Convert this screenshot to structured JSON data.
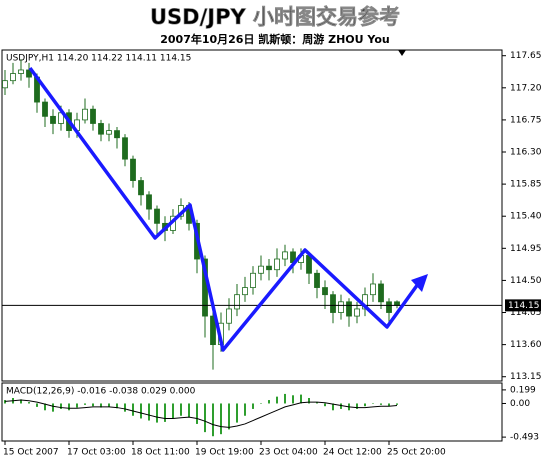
{
  "chart_data": {
    "type": "candlestick",
    "title": "USD/JPY 小时图交易参考",
    "subtitle": "2007年10月26日 凯斯顿：周游 ZHOU You",
    "info_label": "USDJPY,H1  114.20 114.22 114.11 114.15",
    "categories": [
      "15 Oct 2007",
      null,
      null,
      null,
      null,
      null,
      null,
      null,
      "17 Oct 03:00",
      null,
      null,
      null,
      null,
      null,
      null,
      null,
      "18 Oct 11:00",
      null,
      null,
      null,
      null,
      null,
      null,
      null,
      "19 Oct 19:00",
      null,
      null,
      null,
      null,
      null,
      null,
      null,
      "23 Oct 04:00",
      null,
      null,
      null,
      null,
      null,
      null,
      null,
      "24 Oct 12:00",
      null,
      null,
      null,
      null,
      null,
      null,
      null,
      "25 Oct 20:00",
      null
    ],
    "open": [
      117.2,
      117.3,
      117.4,
      117.45,
      117.35,
      117.0,
      116.8,
      116.7,
      116.85,
      116.6,
      116.75,
      116.9,
      116.7,
      116.55,
      116.6,
      116.5,
      116.2,
      115.9,
      115.7,
      115.5,
      115.3,
      115.2,
      115.4,
      115.55,
      115.3,
      114.8,
      114.0,
      113.6,
      113.9,
      114.1,
      114.3,
      114.4,
      114.6,
      114.7,
      114.65,
      114.8,
      114.9,
      114.75,
      114.85,
      114.6,
      114.4,
      114.3,
      114.05,
      114.2,
      114.0,
      114.1,
      114.3,
      114.45,
      114.2,
      114.2
    ],
    "high": [
      117.45,
      117.55,
      117.6,
      117.55,
      117.4,
      117.05,
      116.9,
      116.95,
      116.9,
      116.85,
      117.05,
      116.95,
      116.75,
      116.7,
      116.65,
      116.55,
      116.25,
      115.95,
      115.75,
      115.55,
      115.4,
      115.5,
      115.65,
      115.6,
      115.35,
      114.85,
      114.1,
      114.05,
      114.25,
      114.45,
      114.55,
      114.7,
      114.85,
      114.8,
      114.95,
      115.0,
      114.95,
      114.95,
      114.9,
      114.65,
      114.5,
      114.35,
      114.3,
      114.25,
      114.2,
      114.4,
      114.6,
      114.5,
      114.25,
      114.22
    ],
    "low": [
      117.1,
      117.25,
      117.3,
      117.2,
      116.85,
      116.65,
      116.55,
      116.6,
      116.5,
      116.5,
      116.7,
      116.6,
      116.45,
      116.45,
      116.35,
      116.1,
      115.8,
      115.55,
      115.35,
      115.15,
      115.05,
      115.15,
      115.35,
      115.2,
      114.6,
      113.7,
      113.25,
      113.5,
      113.8,
      114.0,
      114.2,
      114.3,
      114.5,
      114.5,
      114.55,
      114.7,
      114.6,
      114.65,
      114.45,
      114.25,
      114.1,
      113.9,
      113.95,
      113.85,
      113.9,
      114.0,
      114.2,
      114.1,
      113.9,
      114.11
    ],
    "close": [
      117.3,
      117.4,
      117.45,
      117.35,
      117.0,
      116.8,
      116.7,
      116.85,
      116.6,
      116.75,
      116.9,
      116.7,
      116.55,
      116.6,
      116.5,
      116.2,
      115.9,
      115.7,
      115.5,
      115.3,
      115.2,
      115.4,
      115.55,
      115.3,
      114.8,
      114.0,
      113.6,
      113.9,
      114.1,
      114.3,
      114.4,
      114.6,
      114.7,
      114.65,
      114.8,
      114.9,
      114.75,
      114.85,
      114.6,
      114.4,
      114.3,
      114.05,
      114.2,
      114.0,
      114.1,
      114.3,
      114.45,
      114.2,
      114.05,
      114.15
    ],
    "up_color": "#ffffff",
    "down_color": "#1e6b1e",
    "ylim": [
      113.09,
      117.73
    ],
    "yticks": [
      117.65,
      {
        "value": 117.2,
        "label": "117.20"
      },
      116.75,
      {
        "value": 116.3,
        "label": "116.30"
      },
      115.85,
      {
        "value": 115.4,
        "label": "115.40"
      },
      114.95,
      {
        "value": 114.5,
        "label": "114.50"
      },
      114.05,
      {
        "value": 113.6,
        "label": "113.60"
      },
      113.15
    ],
    "last_price": 114.15,
    "grid": false,
    "macd": {
      "label": "MACD(12,26,9) -0.016 -0.038 0.029 0.000",
      "ylim": [
        -0.55,
        0.3
      ],
      "yticks": [
        0.199,
        {
          "value": 0,
          "label": "0.00"
        },
        -0.493
      ],
      "histogram": {
        "color": "#2e9e2e",
        "values": [
          0.05,
          0.08,
          0.06,
          0.02,
          -0.05,
          -0.1,
          -0.12,
          -0.08,
          -0.1,
          -0.06,
          -0.02,
          -0.04,
          -0.06,
          -0.05,
          -0.07,
          -0.12,
          -0.18,
          -0.22,
          -0.25,
          -0.28,
          -0.27,
          -0.22,
          -0.18,
          -0.2,
          -0.3,
          -0.42,
          -0.48,
          -0.45,
          -0.38,
          -0.28,
          -0.18,
          -0.08,
          0.0,
          0.05,
          0.1,
          0.14,
          0.12,
          0.13,
          0.08,
          0.02,
          -0.04,
          -0.1,
          -0.08,
          -0.1,
          -0.08,
          -0.04,
          0.0,
          -0.02,
          -0.04,
          -0.02
        ]
      },
      "signal": {
        "color": "#000000",
        "values": [
          0.03,
          0.04,
          0.05,
          0.04,
          0.02,
          -0.01,
          -0.04,
          -0.06,
          -0.07,
          -0.07,
          -0.06,
          -0.05,
          -0.05,
          -0.05,
          -0.06,
          -0.08,
          -0.11,
          -0.14,
          -0.17,
          -0.2,
          -0.22,
          -0.22,
          -0.21,
          -0.2,
          -0.22,
          -0.26,
          -0.31,
          -0.34,
          -0.35,
          -0.33,
          -0.3,
          -0.25,
          -0.2,
          -0.15,
          -0.1,
          -0.05,
          -0.02,
          0.01,
          0.02,
          0.02,
          0.01,
          -0.01,
          -0.03,
          -0.05,
          -0.06,
          -0.06,
          -0.05,
          -0.04,
          -0.04,
          -0.03
        ]
      }
    }
  }
}
